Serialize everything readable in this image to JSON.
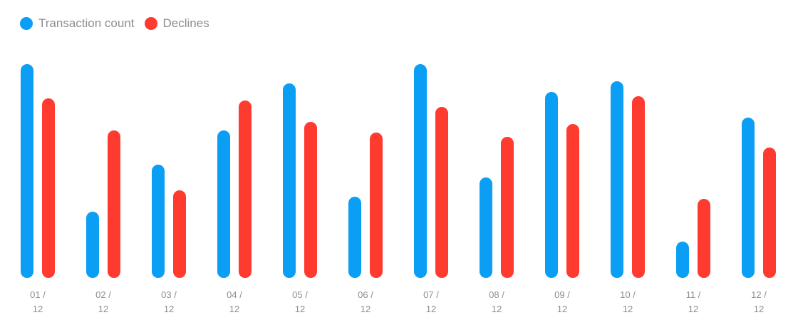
{
  "chart_data": {
    "type": "bar",
    "title": "",
    "xlabel": "",
    "ylabel": "",
    "categories": [
      "01 / 12",
      "02 / 12",
      "03 / 12",
      "04 / 12",
      "05 / 12",
      "06 / 12",
      "07 / 12",
      "08 / 12",
      "09 / 12",
      "10 / 12",
      "11 / 12",
      "12 / 12"
    ],
    "category_lines": [
      [
        "01 /",
        "12"
      ],
      [
        "02 /",
        "12"
      ],
      [
        "03 /",
        "12"
      ],
      [
        "04 /",
        "12"
      ],
      [
        "05 /",
        "12"
      ],
      [
        "06 /",
        "12"
      ],
      [
        "07 /",
        "12"
      ],
      [
        "08 /",
        "12"
      ],
      [
        "09 /",
        "12"
      ],
      [
        "10 /",
        "12"
      ],
      [
        "11 /",
        "12"
      ],
      [
        "12 /",
        "12"
      ]
    ],
    "series": [
      {
        "name": "Transaction count",
        "color": "#0a9ff5",
        "values": [
          100,
          31,
          53,
          69,
          91,
          38,
          100,
          47,
          87,
          92,
          17,
          75
        ]
      },
      {
        "name": "Declines",
        "color": "#ff3b30",
        "values": [
          84,
          69,
          41,
          83,
          73,
          68,
          80,
          66,
          72,
          85,
          37,
          61
        ]
      }
    ],
    "ylim": [
      0,
      100
    ],
    "grid": false,
    "legend_position": "top-left",
    "bar_style": "rounded"
  }
}
